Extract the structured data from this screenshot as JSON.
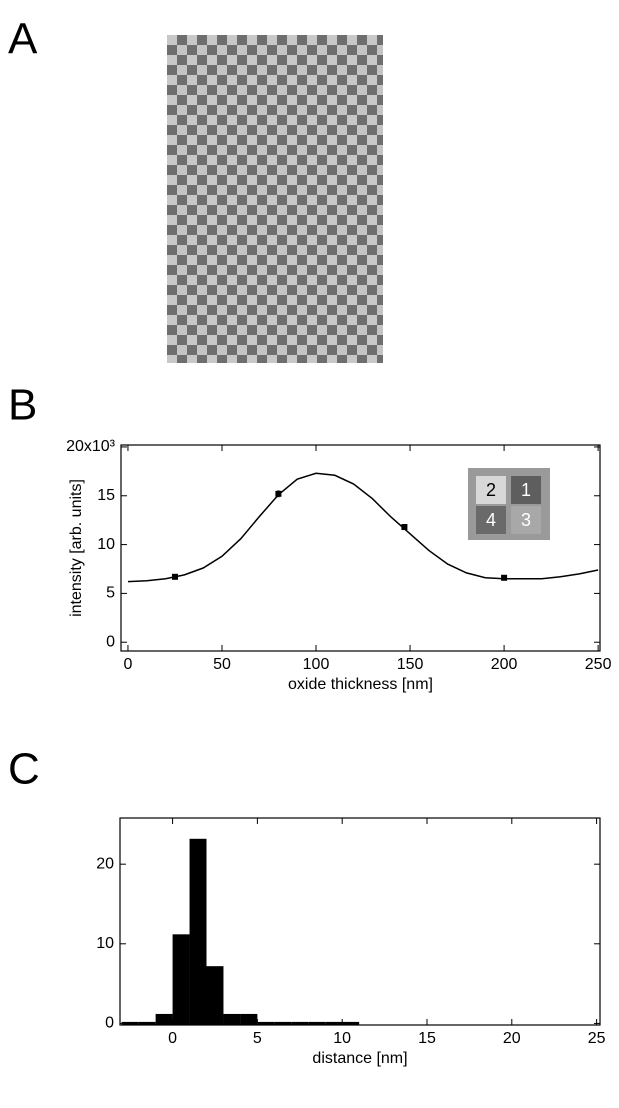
{
  "panels": [
    "A",
    "B",
    "C"
  ],
  "chart_data": [
    {
      "type": "line",
      "ylabel": "intensity [arb. units]",
      "xlabel": "oxide thickness [nm]",
      "xlim": [
        -3.7,
        251
      ],
      "xticks": [
        0,
        50,
        100,
        150,
        200,
        250
      ],
      "ylim": [
        -0.9,
        20.2
      ],
      "yticks": [
        0,
        5,
        10,
        15,
        {
          "value": 20,
          "label": "20x10³"
        }
      ],
      "annotations": [
        "2",
        "1",
        "4",
        "3"
      ],
      "points": {
        "x": [
          25,
          80,
          147,
          200
        ],
        "values": [
          6.7,
          15.2,
          11.8,
          6.6
        ],
        "errors": [
          0.2,
          0.35,
          0.2,
          0.2
        ],
        "color": "#000000"
      },
      "fit": {
        "x": [
          0,
          10,
          20,
          30,
          40,
          50,
          60,
          70,
          80,
          90,
          100,
          110,
          120,
          130,
          140,
          150,
          160,
          170,
          180,
          190,
          200,
          210,
          220,
          230,
          240,
          250
        ],
        "values": [
          6.2,
          6.3,
          6.5,
          6.9,
          7.6,
          8.8,
          10.6,
          12.9,
          15.1,
          16.7,
          17.3,
          17.1,
          16.2,
          14.7,
          12.8,
          11.1,
          9.4,
          8.0,
          7.1,
          6.6,
          6.5,
          6.5,
          6.5,
          6.7,
          7.0,
          7.4
        ],
        "color": "#000000"
      }
    },
    {
      "type": "histogram",
      "xlabel": "distance [nm]",
      "xlim": [
        -3.1,
        25.2
      ],
      "xticks": [
        0,
        5,
        10,
        15,
        20,
        25
      ],
      "ylim": [
        -0.2,
        25.8
      ],
      "yticks": [
        0,
        10,
        20
      ],
      "bins": [
        -3,
        -2,
        -1,
        0,
        1,
        2,
        3,
        4,
        5,
        6,
        7,
        8,
        9,
        10,
        11
      ],
      "values": [
        0,
        0,
        1,
        11,
        23,
        7,
        1,
        1,
        0,
        0,
        0,
        0,
        0,
        0
      ],
      "color": "#000000"
    }
  ]
}
